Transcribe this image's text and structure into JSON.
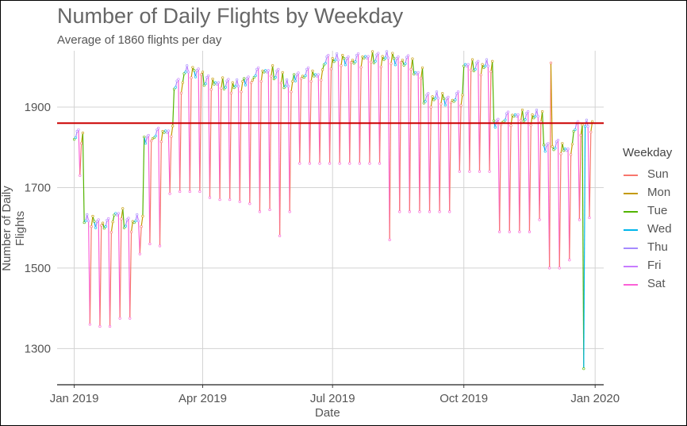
{
  "chart_data": {
    "type": "line",
    "title": "Number of Daily Flights by Weekday",
    "subtitle": "Average of 1860 flights per day",
    "xlabel": "Date",
    "ylabel": "Number of Daily Flights",
    "x_ticks": [
      "Jan 2019",
      "Apr 2019",
      "Jul 2019",
      "Oct 2019",
      "Jan 2020"
    ],
    "y_ticks": [
      1300,
      1500,
      1700,
      1900
    ],
    "xlim": [
      "2018-12-20",
      "2020-01-07"
    ],
    "ylim": [
      1210,
      2040
    ],
    "reference_line": {
      "value": 1860,
      "color": "#cc0000"
    },
    "legend_title": "Weekday",
    "legend_position": "right",
    "grid": true,
    "series": [
      {
        "name": "Sun",
        "color": "#f8766d"
      },
      {
        "name": "Mon",
        "color": "#c49a00"
      },
      {
        "name": "Tue",
        "color": "#53b400"
      },
      {
        "name": "Wed",
        "color": "#00b6eb"
      },
      {
        "name": "Thu",
        "color": "#a58aff"
      },
      {
        "name": "Fri",
        "color": "#c77cff"
      },
      {
        "name": "Sat",
        "color": "#fb61d7"
      }
    ],
    "weekly_levels": {
      "week_start": [
        "2019-01-01",
        "2019-01-08",
        "2019-01-15",
        "2019-01-22",
        "2019-01-29",
        "2019-02-05",
        "2019-02-12",
        "2019-02-19",
        "2019-02-26",
        "2019-03-05",
        "2019-03-12",
        "2019-03-19",
        "2019-03-26",
        "2019-04-02",
        "2019-04-09",
        "2019-04-16",
        "2019-04-23",
        "2019-04-30",
        "2019-05-07",
        "2019-05-14",
        "2019-05-21",
        "2019-05-28",
        "2019-06-04",
        "2019-06-11",
        "2019-06-18",
        "2019-06-25",
        "2019-07-02",
        "2019-07-09",
        "2019-07-16",
        "2019-07-23",
        "2019-07-30",
        "2019-08-06",
        "2019-08-13",
        "2019-08-20",
        "2019-08-27",
        "2019-09-03",
        "2019-09-10",
        "2019-09-17",
        "2019-09-24",
        "2019-10-01",
        "2019-10-08",
        "2019-10-15",
        "2019-10-22",
        "2019-10-29",
        "2019-11-05",
        "2019-11-12",
        "2019-11-19",
        "2019-11-26",
        "2019-12-03",
        "2019-12-10",
        "2019-12-17",
        "2019-12-24"
      ],
      "weekday": [
        1840,
        1625,
        1620,
        1615,
        1640,
        1620,
        1625,
        1830,
        1840,
        1845,
        1965,
        1995,
        1995,
        1970,
        1965,
        1965,
        1960,
        1975,
        1990,
        1995,
        1990,
        1960,
        1985,
        1990,
        1985,
        2025,
        2025,
        2025,
        2025,
        2030,
        2030,
        2030,
        2025,
        2020,
        1990,
        1930,
        1930,
        1925,
        1930,
        2010,
        2010,
        2010,
        1870,
        1880,
        1885,
        1885,
        1885,
        1810,
        1810,
        1800,
        1860,
        1860
      ],
      "saturday": [
        1730,
        1360,
        1355,
        1355,
        1375,
        1375,
        1535,
        1560,
        1555,
        1685,
        1690,
        1690,
        1690,
        1675,
        1670,
        1670,
        1665,
        1660,
        1640,
        1645,
        1580,
        1640,
        1760,
        1760,
        1760,
        1760,
        1760,
        1760,
        1760,
        1760,
        1760,
        1570,
        1640,
        1640,
        1640,
        1640,
        1640,
        1640,
        1740,
        1740,
        1740,
        1740,
        1590,
        1590,
        1590,
        1590,
        1620,
        1500,
        1500,
        1520,
        1620,
        1625
      ]
    },
    "notable_points": [
      {
        "x": "2019-12-24",
        "y": 1250,
        "series": "Wed"
      },
      {
        "x": "2019-12-01",
        "y": 2010,
        "series": "Sun"
      }
    ]
  }
}
